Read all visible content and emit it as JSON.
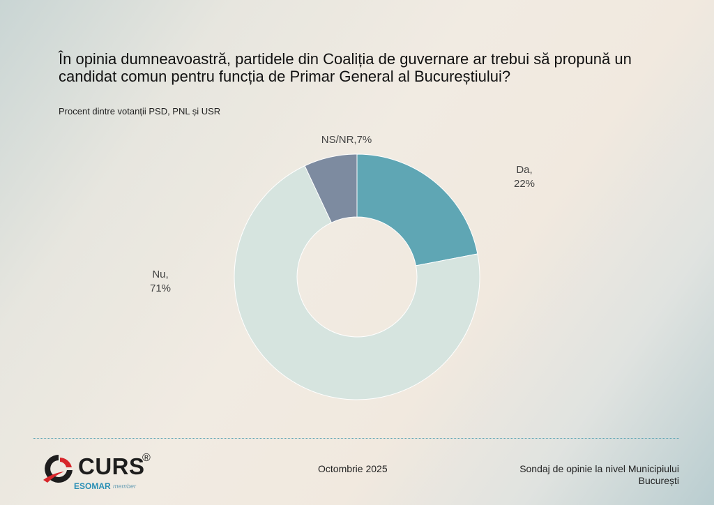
{
  "header": {
    "title": "În opinia dumneavoastră, partidele din Coaliția de guvernare ar trebui să propună un candidat comun pentru funcția de Primar General al Bucureștiului?",
    "subtitle": "Procent dintre votanții PSD, PNL și USR"
  },
  "chart_data": {
    "type": "pie",
    "donut": true,
    "title": "În opinia dumneavoastră, partidele din Coaliția de guvernare ar trebui să propună un candidat comun pentru funcția de Primar General al Bucureștiului?",
    "subtitle": "Procent dintre votanții PSD, PNL și USR",
    "slices": [
      {
        "label": "Da",
        "value": 22,
        "value_label": "22%",
        "color": "#5fa6b4"
      },
      {
        "label": "Nu",
        "value": 71,
        "value_label": "71%",
        "color": "#d6e4df"
      },
      {
        "label": "NS/NR",
        "value": 7,
        "value_label": "7%",
        "color": "#7d8ba0"
      }
    ]
  },
  "footer": {
    "logo_name": "CURS",
    "logo_registered": "®",
    "logo_esomar": "ESOMAR",
    "logo_member": "member",
    "date": "Octombrie 2025",
    "survey_line1": "Sondaj de opinie la nivel Municipiului",
    "survey_line2": "București"
  }
}
